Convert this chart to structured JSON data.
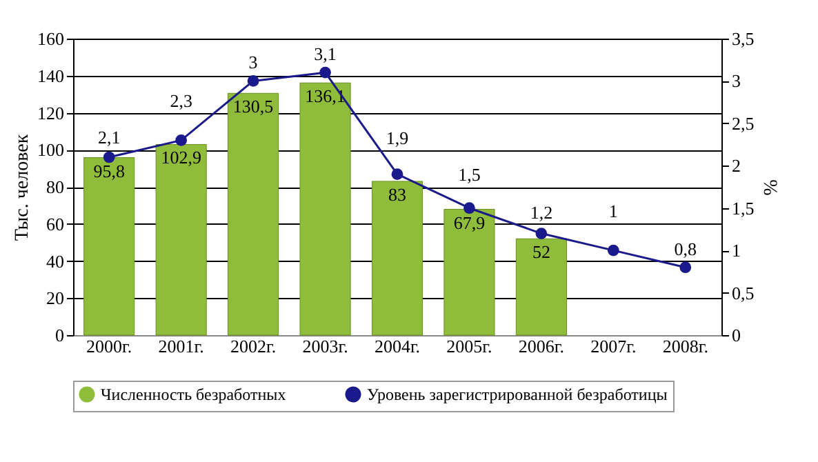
{
  "chart_data": {
    "type": "bar",
    "categories": [
      "2000г.",
      "2001г.",
      "2002г.",
      "2003г.",
      "2004г.",
      "2005г.",
      "2006г.",
      "2007г.",
      "2008г."
    ],
    "series": [
      {
        "name": "Численность безработных",
        "color": "#8fbc3a",
        "values": [
          95.8,
          102.9,
          130.5,
          136.1,
          83,
          67.9,
          52,
          null,
          null
        ],
        "value_labels": [
          "95,8",
          "102,9",
          "130,5",
          "136,1",
          "83",
          "67,9",
          "52",
          null,
          null
        ]
      },
      {
        "name": "Уровень зарегистрированной безработицы",
        "type": "line",
        "axis": "y2",
        "color": "#1a1a8c",
        "values": [
          2.1,
          2.3,
          3,
          3.1,
          1.9,
          1.5,
          1.2,
          1,
          0.8
        ],
        "value_labels": [
          "2,1",
          "2,3",
          "3",
          "3,1",
          "1,9",
          "1,5",
          "1,2",
          "1",
          "0,8"
        ]
      }
    ],
    "ylabel": "Тыс. человек",
    "y2label": "%",
    "ylim": [
      0,
      160
    ],
    "yticks": [
      0,
      20,
      40,
      60,
      80,
      100,
      120,
      140,
      160
    ],
    "y2lim": [
      0,
      3.5
    ],
    "y2ticks": [
      0,
      {
        "value": 0.5,
        "label": "0,5"
      },
      1,
      {
        "value": 1.5,
        "label": "1,5"
      },
      2,
      {
        "value": 2.5,
        "label": "2,5"
      },
      3,
      {
        "value": 3.5,
        "label": "3,5"
      }
    ],
    "grid": "y",
    "legend": "bottom",
    "marker": "circle",
    "line_style": "solid"
  }
}
